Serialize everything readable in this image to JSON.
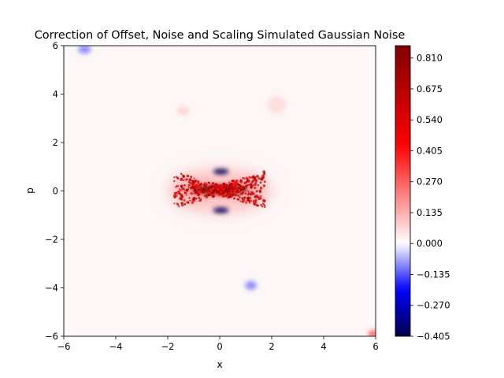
{
  "chart_data": {
    "type": "heatmap",
    "title": "Correction of Offset, Noise and Scaling Simulated Gaussian Noise",
    "xlabel": "x",
    "ylabel": "p",
    "xlim": [
      -6,
      6
    ],
    "ylim": [
      -6,
      6
    ],
    "x_ticks": [
      -6,
      -4,
      -2,
      0,
      2,
      4,
      6
    ],
    "y_ticks": [
      -6,
      -4,
      -2,
      0,
      2,
      4,
      6
    ],
    "x_tick_labels": [
      "−6",
      "−4",
      "−2",
      "0",
      "2",
      "4",
      "6"
    ],
    "y_tick_labels": [
      "−6",
      "−4",
      "−2",
      "0",
      "2",
      "4",
      "6"
    ],
    "grid": false,
    "colormap": "seismic",
    "colorbar": {
      "min": -0.405,
      "max": 0.864,
      "ticks": [
        -0.405,
        -0.27,
        -0.135,
        0.0,
        0.135,
        0.27,
        0.405,
        0.54,
        0.675,
        0.81
      ],
      "tick_labels": [
        "−0.405",
        "−0.270",
        "−0.135",
        "0.000",
        "0.135",
        "0.270",
        "0.405",
        "0.540",
        "0.675",
        "0.810"
      ]
    },
    "features": [
      {
        "kind": "positive-lobe",
        "center": [
          -1.1,
          0.05
        ],
        "sigma": [
          0.55,
          0.32
        ],
        "value": 0.62
      },
      {
        "kind": "positive-lobe",
        "center": [
          1.1,
          0.05
        ],
        "sigma": [
          0.55,
          0.32
        ],
        "value": 0.62
      },
      {
        "kind": "positive-core",
        "center": [
          0.0,
          0.05
        ],
        "sigma": [
          0.9,
          0.18
        ],
        "value": 0.85
      },
      {
        "kind": "positive-halo",
        "center": [
          0.0,
          0.0
        ],
        "sigma": [
          1.6,
          0.75
        ],
        "value": 0.12
      },
      {
        "kind": "negative-spot",
        "center": [
          0.05,
          0.8
        ],
        "sigma": [
          0.25,
          0.1
        ],
        "value": -0.4
      },
      {
        "kind": "negative-spot",
        "center": [
          0.05,
          -0.8
        ],
        "sigma": [
          0.25,
          0.1
        ],
        "value": -0.4
      },
      {
        "kind": "negative-spot",
        "center": [
          -5.2,
          5.85
        ],
        "sigma": [
          0.2,
          0.15
        ],
        "value": -0.1
      },
      {
        "kind": "negative-spot",
        "center": [
          1.2,
          -3.9
        ],
        "sigma": [
          0.18,
          0.15
        ],
        "value": -0.1
      },
      {
        "kind": "positive-spot",
        "center": [
          2.2,
          3.55
        ],
        "sigma": [
          0.3,
          0.3
        ],
        "value": 0.06
      },
      {
        "kind": "positive-spot",
        "center": [
          -1.4,
          3.3
        ],
        "sigma": [
          0.2,
          0.15
        ],
        "value": 0.08
      },
      {
        "kind": "positive-spot",
        "center": [
          5.9,
          -5.9
        ],
        "sigma": [
          0.15,
          0.12
        ],
        "value": 0.3
      }
    ]
  }
}
